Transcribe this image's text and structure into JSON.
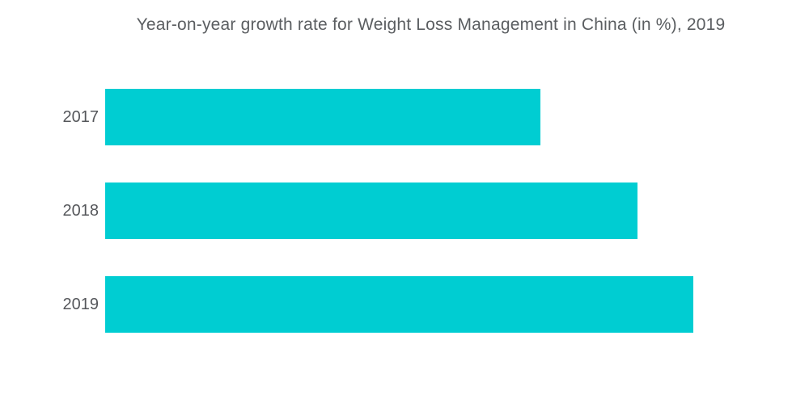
{
  "page": {
    "background": "#ffffff"
  },
  "header": {
    "title": "Year-on-year growth rate for Weight Loss Management in China (in %), 2019"
  },
  "chart_data": {
    "type": "bar",
    "orientation": "horizontal",
    "title": "Year-on-year growth rate for Weight Loss Management in China (in %), 2019",
    "categories": [
      "2017",
      "2018",
      "2019"
    ],
    "values": [
      7.4,
      9.05,
      10.0
    ],
    "xlabel": "",
    "ylabel": "",
    "xlim": [
      0,
      10
    ],
    "grid": false,
    "legend": "none",
    "value_labels_shown": false,
    "axis_shown": false,
    "bar_color": "#00cdd2",
    "title_color": "#5b5e61",
    "label_color": "#55575b"
  }
}
